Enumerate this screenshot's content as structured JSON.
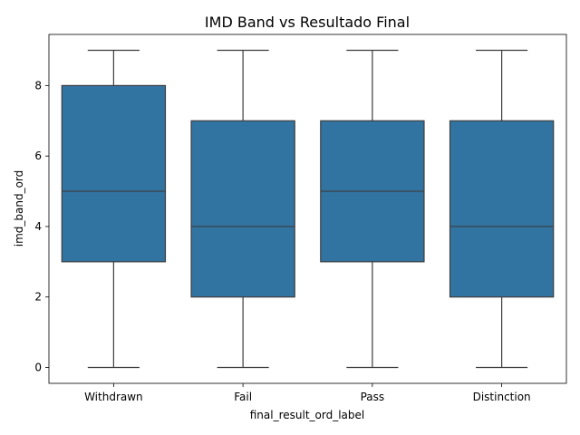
{
  "chart_data": {
    "type": "box",
    "title": "IMD Band vs Resultado Final",
    "xlabel": "final_result_ord_label",
    "ylabel": "imd_band_ord",
    "categories": [
      "Withdrawn",
      "Fail",
      "Pass",
      "Distinction"
    ],
    "boxes": [
      {
        "category": "Withdrawn",
        "min": 0,
        "q1": 3,
        "median": 5,
        "q3": 8,
        "max": 9
      },
      {
        "category": "Fail",
        "min": 0,
        "q1": 2,
        "median": 4,
        "q3": 7,
        "max": 9
      },
      {
        "category": "Pass",
        "min": 0,
        "q1": 3,
        "median": 5,
        "q3": 7,
        "max": 9
      },
      {
        "category": "Distinction",
        "min": 0,
        "q1": 2,
        "median": 4,
        "q3": 7,
        "max": 9
      }
    ],
    "yticks": [
      0,
      2,
      4,
      6,
      8
    ],
    "ylim": [
      -0.45,
      9.45
    ],
    "grid": false,
    "box_color": "#3274a1",
    "line_color": "#3d3d3d"
  }
}
